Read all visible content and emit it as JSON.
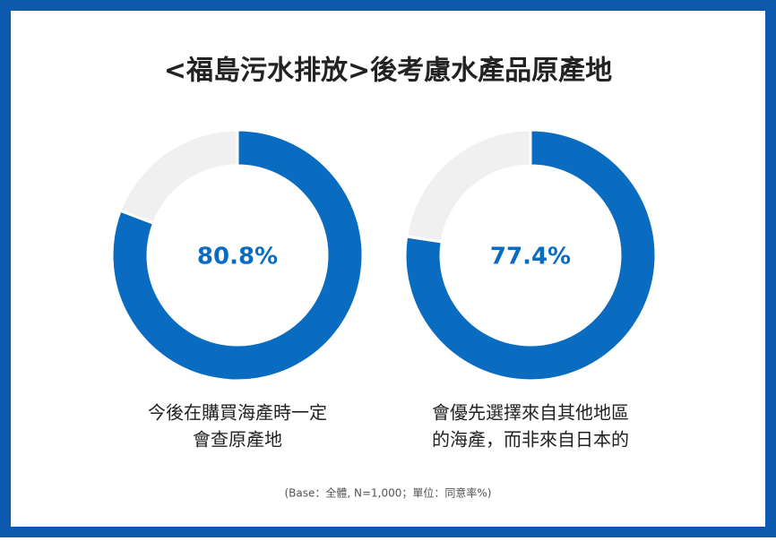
{
  "title": "<福島污水排放>後考慮水產品原產地",
  "footnote": "(Base：全體, N=1,000；單位：同意率%)",
  "chart_data": [
    {
      "type": "donut",
      "label_lines": [
        "今後在購買海產時一定",
        "會查原產地"
      ],
      "values": [
        80.8,
        19.2
      ],
      "value_labels": [
        "80.8%",
        null
      ],
      "colors": [
        "#0a6cc0",
        "#f0f0f0"
      ]
    },
    {
      "type": "donut",
      "label_lines": [
        "會優先選擇來自其他地區",
        "的海產，而非來自日本的"
      ],
      "values": [
        77.4,
        22.6
      ],
      "value_labels": [
        "77.4%",
        null
      ],
      "colors": [
        "#0a6cc0",
        "#f0f0f0"
      ]
    }
  ]
}
